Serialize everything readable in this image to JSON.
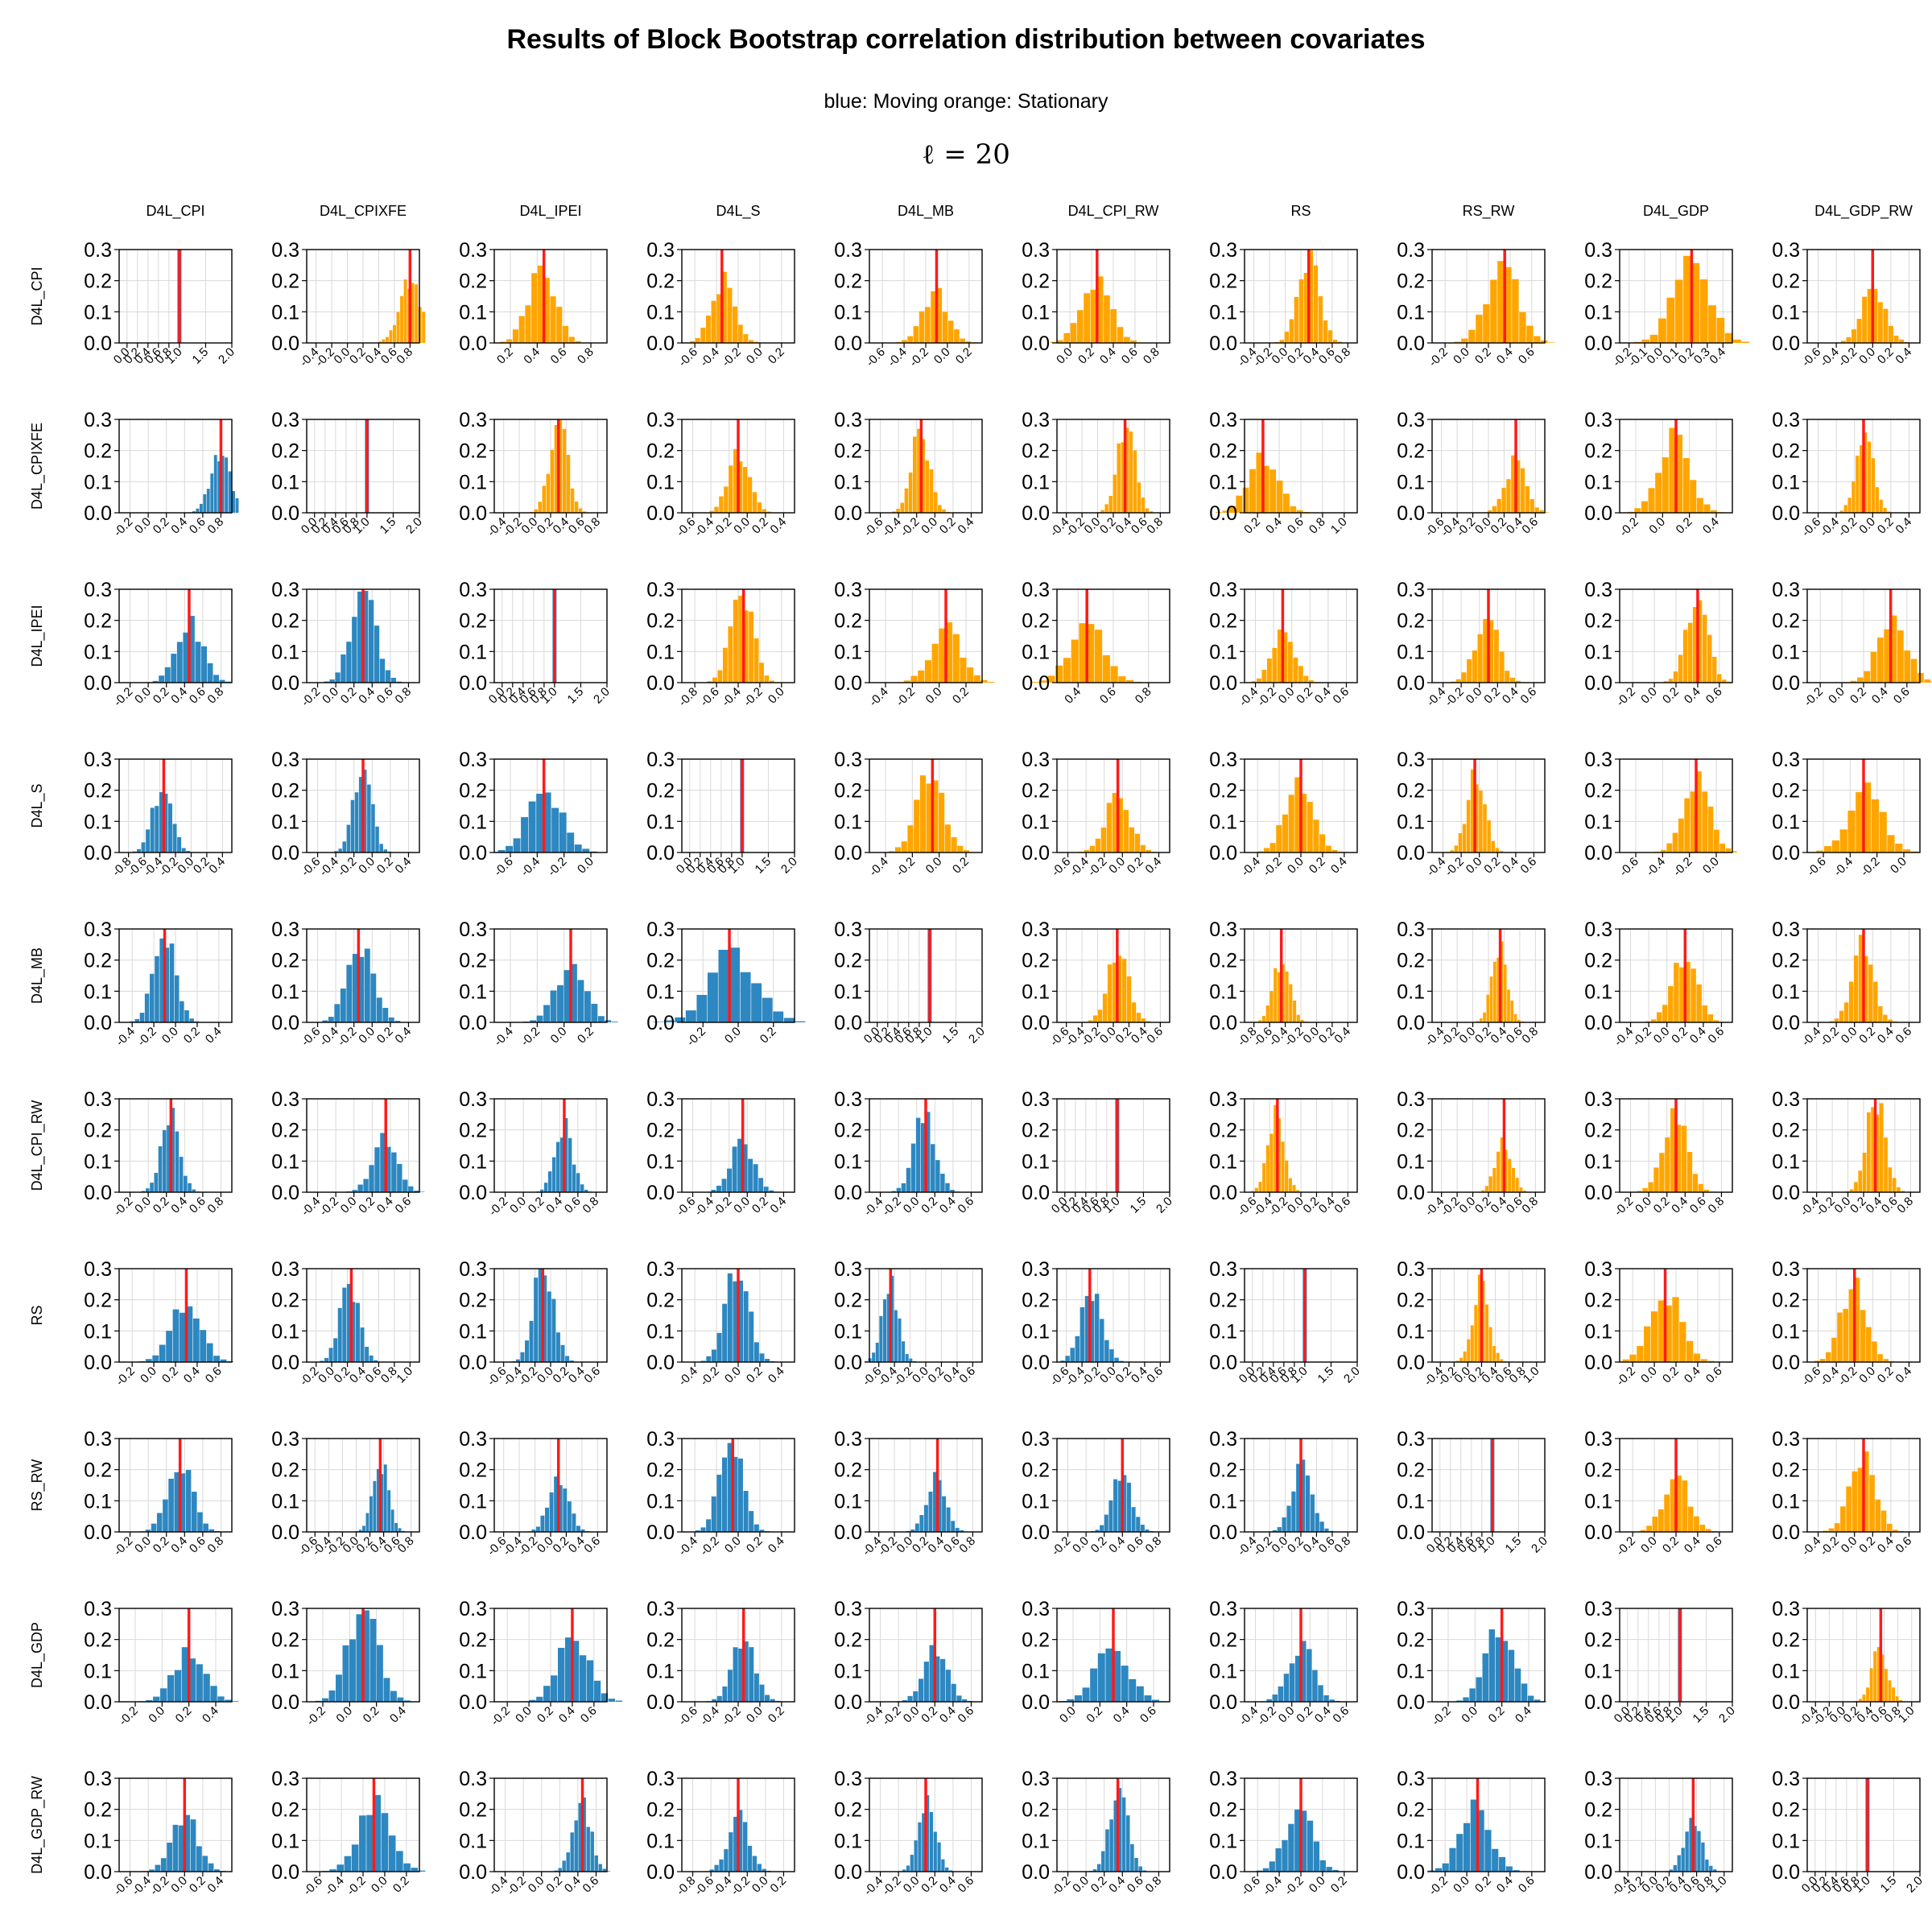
{
  "title": "Results of Block Bootstrap correlation distribution between covariates",
  "subtitle": "blue: Moving   orange: Stationary",
  "block_length_label": "ℓ = 20",
  "colors": {
    "moving": "#2d87c0",
    "stationary": "#ffa500",
    "reference_line": "#ff1a1a",
    "grid": "#d9d9d9"
  },
  "chart_data": {
    "type": "bar",
    "layout": "10x10 histogram matrix",
    "variables": [
      "D4L_CPI",
      "D4L_CPIXFE",
      "D4L_IPEI",
      "D4L_S",
      "D4L_MB",
      "D4L_CPI_RW",
      "RS",
      "RS_RW",
      "D4L_GDP",
      "D4L_GDP_RW"
    ],
    "lower_triangle_series": "Moving",
    "upper_triangle_series": "Stationary",
    "y_ticks": [
      "0.0",
      "0.1",
      "0.2",
      "0.3"
    ],
    "ylim": [
      0,
      0.3
    ],
    "diagonal_x_ticks": [
      "0.0",
      "0.2",
      "0.4",
      "0.6",
      "0.8",
      "1.0",
      "1.5",
      "2.0"
    ],
    "diagonal_xlim": [
      -0.15,
      2.0
    ],
    "diagonal_value": 1.0,
    "correlations": [
      [
        1.0,
        0.8,
        0.45,
        -0.35,
        -0.1,
        0.25,
        0.3,
        0.35,
        0.2,
        0.0
      ],
      [
        0.8,
        1.0,
        0.3,
        -0.1,
        -0.15,
        0.35,
        0.25,
        0.35,
        0.1,
        -0.1
      ],
      [
        0.45,
        0.3,
        1.0,
        -0.35,
        0.05,
        0.45,
        -0.1,
        0.1,
        0.4,
        0.45
      ],
      [
        -0.35,
        -0.1,
        -0.35,
        1.0,
        -0.05,
        -0.05,
        0.0,
        -0.05,
        -0.15,
        -0.3
      ],
      [
        -0.1,
        -0.15,
        0.05,
        -0.05,
        1.0,
        0.05,
        -0.45,
        0.35,
        0.2,
        0.1
      ],
      [
        0.25,
        0.35,
        0.45,
        -0.05,
        0.1,
        1.0,
        -0.3,
        0.4,
        0.3,
        0.35
      ],
      [
        0.3,
        0.25,
        -0.1,
        0.0,
        -0.45,
        -0.3,
        1.0,
        0.2,
        0.1,
        -0.2
      ],
      [
        0.35,
        0.35,
        0.1,
        -0.05,
        0.35,
        0.4,
        0.2,
        1.0,
        0.2,
        0.1
      ],
      [
        0.2,
        0.1,
        0.4,
        -0.15,
        0.2,
        0.3,
        0.1,
        0.2,
        1.0,
        0.55
      ],
      [
        0.0,
        -0.1,
        0.45,
        -0.3,
        0.1,
        0.35,
        -0.2,
        0.1,
        0.55,
        1.0
      ]
    ],
    "x_ticks": [
      [
        null,
        [
          "-0.4",
          "-0.2",
          "0.0",
          "0.2",
          "0.4",
          "0.6",
          "0.8"
        ],
        [
          "0.2",
          "0.4",
          "0.6",
          "0.8"
        ],
        [
          "-0.6",
          "-0.4",
          "-0.2",
          "0.0",
          "0.2"
        ],
        [
          "-0.6",
          "-0.4",
          "-0.2",
          "0.0",
          "0.2"
        ],
        [
          "0.0",
          "0.2",
          "0.4",
          "0.6",
          "0.8"
        ],
        [
          "-0.4",
          "-0.2",
          "0.0",
          "0.2",
          "0.4",
          "0.6",
          "0.8"
        ],
        [
          "-0.2",
          "0.0",
          "0.2",
          "0.4",
          "0.6"
        ],
        [
          "-0.2",
          "-0.1",
          "0.0",
          "0.1",
          "0.2",
          "0.3",
          "0.4"
        ],
        [
          "-0.6",
          "-0.4",
          "-0.2",
          "0.0",
          "0.2",
          "0.4"
        ]
      ],
      [
        [
          "-0.2",
          "0.0",
          "0.2",
          "0.4",
          "0.6",
          "0.8"
        ],
        null,
        [
          "-0.4",
          "-0.2",
          "0.0",
          "0.2",
          "0.4",
          "0.6",
          "0.8"
        ],
        [
          "-0.6",
          "-0.4",
          "-0.2",
          "0.0",
          "0.2",
          "0.4"
        ],
        [
          "-0.6",
          "-0.4",
          "-0.2",
          "0.0",
          "0.2",
          "0.4"
        ],
        [
          "-0.4",
          "-0.2",
          "0.0",
          "0.2",
          "0.4",
          "0.6",
          "0.8"
        ],
        [
          "0.2",
          "0.4",
          "0.6",
          "0.8",
          "1.0"
        ],
        [
          "-0.6",
          "-0.4",
          "-0.2",
          "0.0",
          "0.2",
          "0.4",
          "0.6"
        ],
        [
          "-0.2",
          "0.0",
          "0.2",
          "0.4"
        ],
        [
          "-0.6",
          "-0.4",
          "-0.2",
          "0.0",
          "0.2",
          "0.4"
        ]
      ],
      [
        [
          "-0.2",
          "0.0",
          "0.2",
          "0.4",
          "0.6",
          "0.8"
        ],
        [
          "-0.2",
          "0.0",
          "0.2",
          "0.4",
          "0.6",
          "0.8"
        ],
        null,
        [
          "-0.8",
          "-0.6",
          "-0.4",
          "-0.2",
          "0.0"
        ],
        [
          "-0.4",
          "-0.2",
          "0.0",
          "0.2"
        ],
        [
          "0.4",
          "0.6",
          "0.8"
        ],
        [
          "-0.4",
          "-0.2",
          "0.0",
          "0.2",
          "0.4",
          "0.6"
        ],
        [
          "-0.4",
          "-0.2",
          "0.0",
          "0.2",
          "0.4",
          "0.6"
        ],
        [
          "-0.2",
          "0.0",
          "0.2",
          "0.4",
          "0.6"
        ],
        [
          "-0.2",
          "0.0",
          "0.2",
          "0.4",
          "0.6"
        ]
      ],
      [
        [
          "-0.8",
          "-0.6",
          "-0.4",
          "-0.2",
          "0.0",
          "0.2",
          "0.4"
        ],
        [
          "-0.6",
          "-0.4",
          "-0.2",
          "0.0",
          "0.2",
          "0.4"
        ],
        [
          "-0.6",
          "-0.4",
          "-0.2",
          "0.0"
        ],
        null,
        [
          "-0.4",
          "-0.2",
          "0.0",
          "0.2"
        ],
        [
          "-0.6",
          "-0.4",
          "-0.2",
          "0.0",
          "0.2",
          "0.4"
        ],
        [
          "-0.4",
          "-0.2",
          "0.0",
          "0.2",
          "0.4"
        ],
        [
          "-0.4",
          "-0.2",
          "0.0",
          "0.2",
          "0.4",
          "0.6"
        ],
        [
          "-0.6",
          "-0.4",
          "-0.2",
          "0.0"
        ],
        [
          "-0.6",
          "-0.4",
          "-0.2",
          "0.0"
        ]
      ],
      [
        [
          "-0.4",
          "-0.2",
          "0.0",
          "0.2",
          "0.4"
        ],
        [
          "-0.6",
          "-0.4",
          "-0.2",
          "0.0",
          "0.2",
          "0.4"
        ],
        [
          "-0.4",
          "-0.2",
          "0.0",
          "0.2"
        ],
        [
          "-0.2",
          "0.0",
          "0.2"
        ],
        null,
        [
          "-0.6",
          "-0.4",
          "-0.2",
          "0.0",
          "0.2",
          "0.4",
          "0.6"
        ],
        [
          "-0.8",
          "-0.6",
          "-0.4",
          "-0.2",
          "0.0",
          "0.2",
          "0.4"
        ],
        [
          "-0.4",
          "-0.2",
          "0.0",
          "0.2",
          "0.4",
          "0.6",
          "0.8"
        ],
        [
          "-0.4",
          "-0.2",
          "0.0",
          "0.2",
          "0.4",
          "0.6"
        ],
        [
          "-0.4",
          "-0.2",
          "0.0",
          "0.2",
          "0.4",
          "0.6"
        ]
      ],
      [
        [
          "-0.2",
          "0.0",
          "0.2",
          "0.4",
          "0.6",
          "0.8"
        ],
        [
          "-0.4",
          "-0.2",
          "0.0",
          "0.2",
          "0.4",
          "0.6"
        ],
        [
          "-0.2",
          "0.0",
          "0.2",
          "0.4",
          "0.6",
          "0.8"
        ],
        [
          "-0.6",
          "-0.4",
          "-0.2",
          "0.0",
          "0.2",
          "0.4"
        ],
        [
          "-0.4",
          "-0.2",
          "0.0",
          "0.2",
          "0.4",
          "0.6"
        ],
        null,
        [
          "-0.6",
          "-0.4",
          "-0.2",
          "0.0",
          "0.2",
          "0.4",
          "0.6"
        ],
        [
          "-0.4",
          "-0.2",
          "0.0",
          "0.2",
          "0.4",
          "0.6",
          "0.8"
        ],
        [
          "-0.2",
          "0.0",
          "0.2",
          "0.4",
          "0.6",
          "0.8"
        ],
        [
          "-0.4",
          "-0.2",
          "0.0",
          "0.2",
          "0.4",
          "0.6",
          "0.8"
        ]
      ],
      [
        [
          "-0.2",
          "0.0",
          "0.2",
          "0.4",
          "0.6"
        ],
        [
          "-0.2",
          "0.0",
          "0.2",
          "0.4",
          "0.6",
          "0.8",
          "1.0"
        ],
        [
          "-0.6",
          "-0.4",
          "-0.2",
          "0.0",
          "0.2",
          "0.4",
          "0.6"
        ],
        [
          "-0.4",
          "-0.2",
          "0.0",
          "0.2",
          "0.4"
        ],
        [
          "-0.6",
          "-0.4",
          "-0.2",
          "0.0",
          "0.2",
          "0.4",
          "0.6"
        ],
        [
          "-0.6",
          "-0.4",
          "-0.2",
          "0.0",
          "0.2",
          "0.4",
          "0.6"
        ],
        null,
        [
          "-0.4",
          "-0.2",
          "0.0",
          "0.2",
          "0.4",
          "0.6",
          "0.8",
          "1.0"
        ],
        [
          "-0.2",
          "0.0",
          "0.2",
          "0.4",
          "0.6"
        ],
        [
          "-0.6",
          "-0.4",
          "-0.2",
          "0.0",
          "0.2",
          "0.4"
        ]
      ],
      [
        [
          "-0.2",
          "0.0",
          "0.2",
          "0.4",
          "0.6",
          "0.8"
        ],
        [
          "-0.6",
          "-0.4",
          "-0.2",
          "0.0",
          "0.2",
          "0.4",
          "0.6",
          "0.8"
        ],
        [
          "-0.6",
          "-0.4",
          "-0.2",
          "0.0",
          "0.2",
          "0.4",
          "0.6"
        ],
        [
          "-0.4",
          "-0.2",
          "0.0",
          "0.2",
          "0.4"
        ],
        [
          "-0.4",
          "-0.2",
          "0.0",
          "0.2",
          "0.4",
          "0.6",
          "0.8"
        ],
        [
          "-0.2",
          "0.0",
          "0.2",
          "0.4",
          "0.6",
          "0.8"
        ],
        [
          "-0.4",
          "-0.2",
          "0.0",
          "0.2",
          "0.4",
          "0.6",
          "0.8"
        ],
        null,
        [
          "-0.2",
          "0.0",
          "0.2",
          "0.4",
          "0.6"
        ],
        [
          "-0.4",
          "-0.2",
          "0.0",
          "0.2",
          "0.4",
          "0.6"
        ]
      ],
      [
        [
          "-0.2",
          "0.0",
          "0.2",
          "0.4"
        ],
        [
          "-0.2",
          "0.0",
          "0.2",
          "0.4"
        ],
        [
          "-0.2",
          "0.0",
          "0.2",
          "0.4",
          "0.6"
        ],
        [
          "-0.6",
          "-0.4",
          "-0.2",
          "0.0",
          "0.2"
        ],
        [
          "-0.4",
          "-0.2",
          "0.0",
          "0.2",
          "0.4",
          "0.6"
        ],
        [
          "0.0",
          "0.2",
          "0.4",
          "0.6"
        ],
        [
          "-0.4",
          "-0.2",
          "0.0",
          "0.2",
          "0.4",
          "0.6"
        ],
        [
          "-0.2",
          "0.0",
          "0.2",
          "0.4"
        ],
        null,
        [
          "-0.4",
          "-0.2",
          "0.0",
          "0.2",
          "0.4",
          "0.6",
          "0.8",
          "1.0"
        ]
      ],
      [
        [
          "-0.6",
          "-0.4",
          "-0.2",
          "0.0",
          "0.2",
          "0.4"
        ],
        [
          "-0.6",
          "-0.4",
          "-0.2",
          "0.0",
          "0.2"
        ],
        [
          "-0.4",
          "-0.2",
          "0.0",
          "0.2",
          "0.4",
          "0.6"
        ],
        [
          "-0.8",
          "-0.6",
          "-0.4",
          "-0.2",
          "0.0",
          "0.2"
        ],
        [
          "-0.4",
          "-0.2",
          "0.0",
          "0.2",
          "0.4",
          "0.6"
        ],
        [
          "-0.2",
          "0.0",
          "0.2",
          "0.4",
          "0.6",
          "0.8"
        ],
        [
          "-0.6",
          "-0.4",
          "-0.2",
          "0.0",
          "0.2"
        ],
        [
          "-0.2",
          "0.0",
          "0.2",
          "0.4",
          "0.6"
        ],
        [
          "-0.4",
          "-0.2",
          "0.0",
          "0.2",
          "0.4",
          "0.6",
          "0.8",
          "1.0"
        ],
        null
      ]
    ]
  }
}
